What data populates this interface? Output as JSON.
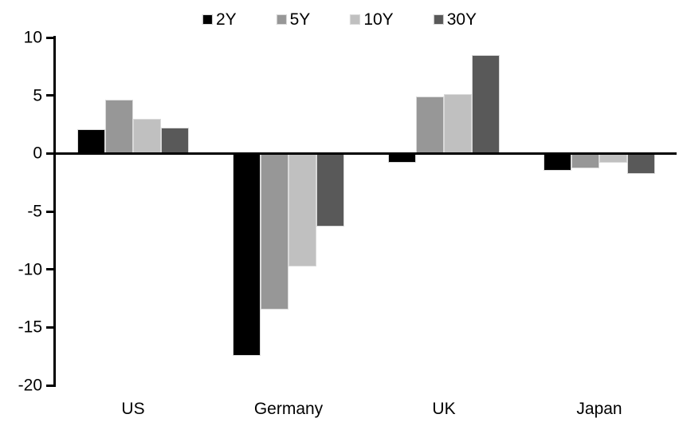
{
  "chart_data": {
    "type": "bar",
    "title": "",
    "xlabel": "",
    "ylabel": "",
    "categories": [
      "US",
      "Germany",
      "UK",
      "Japan"
    ],
    "series": [
      {
        "name": "2Y",
        "color": "#000000",
        "values": [
          2.1,
          -17.5,
          -0.8,
          -1.5
        ]
      },
      {
        "name": "5Y",
        "color": "#979797",
        "values": [
          4.6,
          -13.5,
          4.9,
          -1.3
        ]
      },
      {
        "name": "10Y",
        "color": "#c0c0c0",
        "values": [
          3.0,
          -9.8,
          5.1,
          -0.8
        ]
      },
      {
        "name": "30Y",
        "color": "#595959",
        "values": [
          2.2,
          -6.3,
          8.5,
          -1.8
        ]
      }
    ],
    "ylim": [
      -20,
      10
    ],
    "yticks": [
      10,
      5,
      0,
      -5,
      -10,
      -15,
      -20
    ],
    "grid": false,
    "legend_position": "top-center",
    "axis_color": "#000000",
    "background_color": "#ffffff"
  }
}
